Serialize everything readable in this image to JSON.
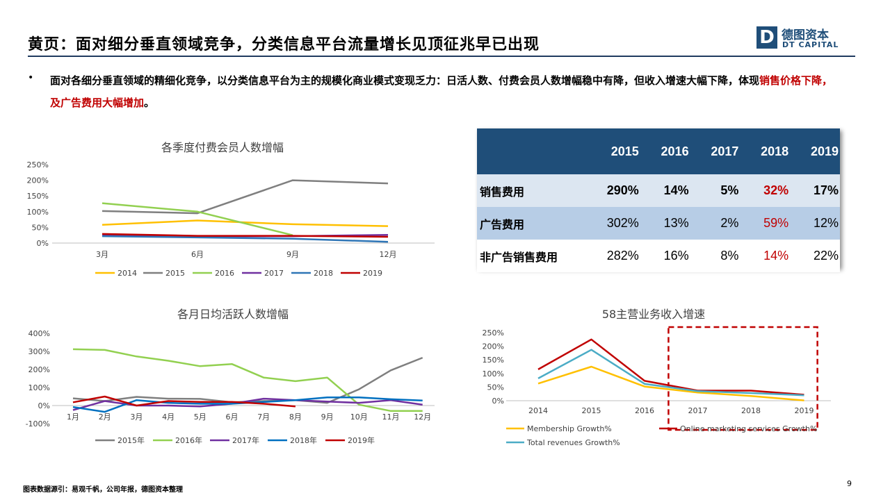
{
  "slide": {
    "title": "黄页：面对细分垂直领域竞争，分类信息平台流量增长见顶征兆早已出现",
    "bullet_text": "面对各细分垂直领域的精细化竞争，以分类信息平台为主的规模化商业模式变现乏力：日活人数、付费会员人数增幅稳中有降，但收入增速大幅下降，体现",
    "bullet_highlight": "销售价格下降，及广告费用大幅增加",
    "bullet_end": "。",
    "source": "图表数据源引：易观千帆，公司年报，德图资本整理",
    "page_number": "9"
  },
  "logo": {
    "mark": "D",
    "cn": "德图资本",
    "en": "DT CAPITAL",
    "color": "#1f4e79"
  },
  "expense_table": {
    "columns": [
      "",
      "2015",
      "2016",
      "2017",
      "2018",
      "2019"
    ],
    "rows": [
      {
        "label": "销售费用",
        "values": [
          "290%",
          "14%",
          "5%",
          "32%",
          "17%"
        ],
        "bold": true
      },
      {
        "label": "广告费用",
        "values": [
          "302%",
          "13%",
          "2%",
          "59%",
          "12%"
        ],
        "bold": false
      },
      {
        "label": "非广告销售费用",
        "values": [
          "282%",
          "16%",
          "8%",
          "14%",
          "22%"
        ],
        "bold": false
      }
    ],
    "highlight_column": "2018",
    "highlight_color": "#c00000"
  },
  "chart_data": [
    {
      "type": "line",
      "title": "各季度付费会员人数增幅",
      "categories": [
        "3月",
        "6月",
        "9月",
        "12月"
      ],
      "ylim": [
        0,
        2.5
      ],
      "yticks": [
        "0%",
        "50%",
        "100%",
        "150%",
        "200%",
        "250%"
      ],
      "legend_position": "bottom",
      "series": [
        {
          "name": "2014",
          "color": "#ffc000",
          "values": [
            0.58,
            0.72,
            0.6,
            0.54
          ]
        },
        {
          "name": "2015",
          "color": "#7f7f7f",
          "values": [
            1.02,
            0.95,
            2.0,
            1.9
          ]
        },
        {
          "name": "2016",
          "color": "#92d050",
          "values": [
            1.27,
            1.0,
            0.25,
            null
          ]
        },
        {
          "name": "2017",
          "color": "#7030a0",
          "values": [
            0.25,
            0.22,
            0.22,
            0.26
          ]
        },
        {
          "name": "2018",
          "color": "#2e75b6",
          "values": [
            0.22,
            0.18,
            0.14,
            0.04
          ]
        },
        {
          "name": "2019",
          "color": "#c00000",
          "values": [
            0.29,
            0.23,
            0.23,
            0.2
          ]
        }
      ]
    },
    {
      "type": "line",
      "title": "各月日均活跃人数增幅",
      "categories": [
        "1月",
        "2月",
        "3月",
        "4月",
        "5月",
        "6月",
        "7月",
        "8月",
        "9月",
        "10月",
        "11月",
        "12月"
      ],
      "ylim": [
        -1,
        4
      ],
      "yticks": [
        "-100%",
        "0%",
        "100%",
        "200%",
        "300%",
        "400%"
      ],
      "legend_position": "bottom",
      "series": [
        {
          "name": "2015年",
          "color": "#7f7f7f",
          "values": [
            0.4,
            0.25,
            0.48,
            0.38,
            0.37,
            0.18,
            0.25,
            0.3,
            0.15,
            0.9,
            1.95,
            2.65
          ]
        },
        {
          "name": "2016年",
          "color": "#92d050",
          "values": [
            3.12,
            3.08,
            2.72,
            2.48,
            2.18,
            2.3,
            1.55,
            1.35,
            1.55,
            0.05,
            -0.3,
            -0.3
          ]
        },
        {
          "name": "2017年",
          "color": "#7030a0",
          "values": [
            -0.25,
            0.25,
            0.0,
            0.0,
            -0.05,
            0.1,
            0.38,
            0.3,
            0.22,
            0.15,
            0.3,
            0.05
          ]
        },
        {
          "name": "2018年",
          "color": "#0070c0",
          "values": [
            -0.08,
            -0.35,
            0.3,
            0.15,
            0.1,
            0.1,
            0.2,
            0.3,
            0.45,
            0.45,
            0.35,
            0.28
          ]
        },
        {
          "name": "2019年",
          "color": "#c00000",
          "values": [
            0.18,
            0.5,
            0.0,
            0.25,
            0.2,
            0.2,
            0.1,
            -0.05,
            null,
            null,
            null,
            null
          ]
        }
      ]
    },
    {
      "type": "line",
      "title": "58主营业务收入增速",
      "categories": [
        "2014",
        "2015",
        "2016",
        "2017",
        "2018",
        "2019"
      ],
      "ylim": [
        0,
        2.5
      ],
      "yticks": [
        "0%",
        "50%",
        "100%",
        "150%",
        "200%",
        "250%"
      ],
      "legend_position": "bottom",
      "highlight_box": {
        "from": "2017",
        "to": "2019",
        "color": "#c00000",
        "style": "dashed"
      },
      "series": [
        {
          "name": "Membership Growth%",
          "color": "#ffc000",
          "values": [
            0.63,
            1.25,
            0.52,
            0.3,
            0.17,
            0.01
          ]
        },
        {
          "name": "Online marketing services Growth%",
          "color": "#c00000",
          "values": [
            1.15,
            2.25,
            0.73,
            0.37,
            0.37,
            0.22
          ]
        },
        {
          "name": "Total revenues Growth%",
          "color": "#4bacc6",
          "values": [
            0.82,
            1.87,
            0.62,
            0.35,
            0.28,
            0.2
          ]
        }
      ]
    }
  ]
}
